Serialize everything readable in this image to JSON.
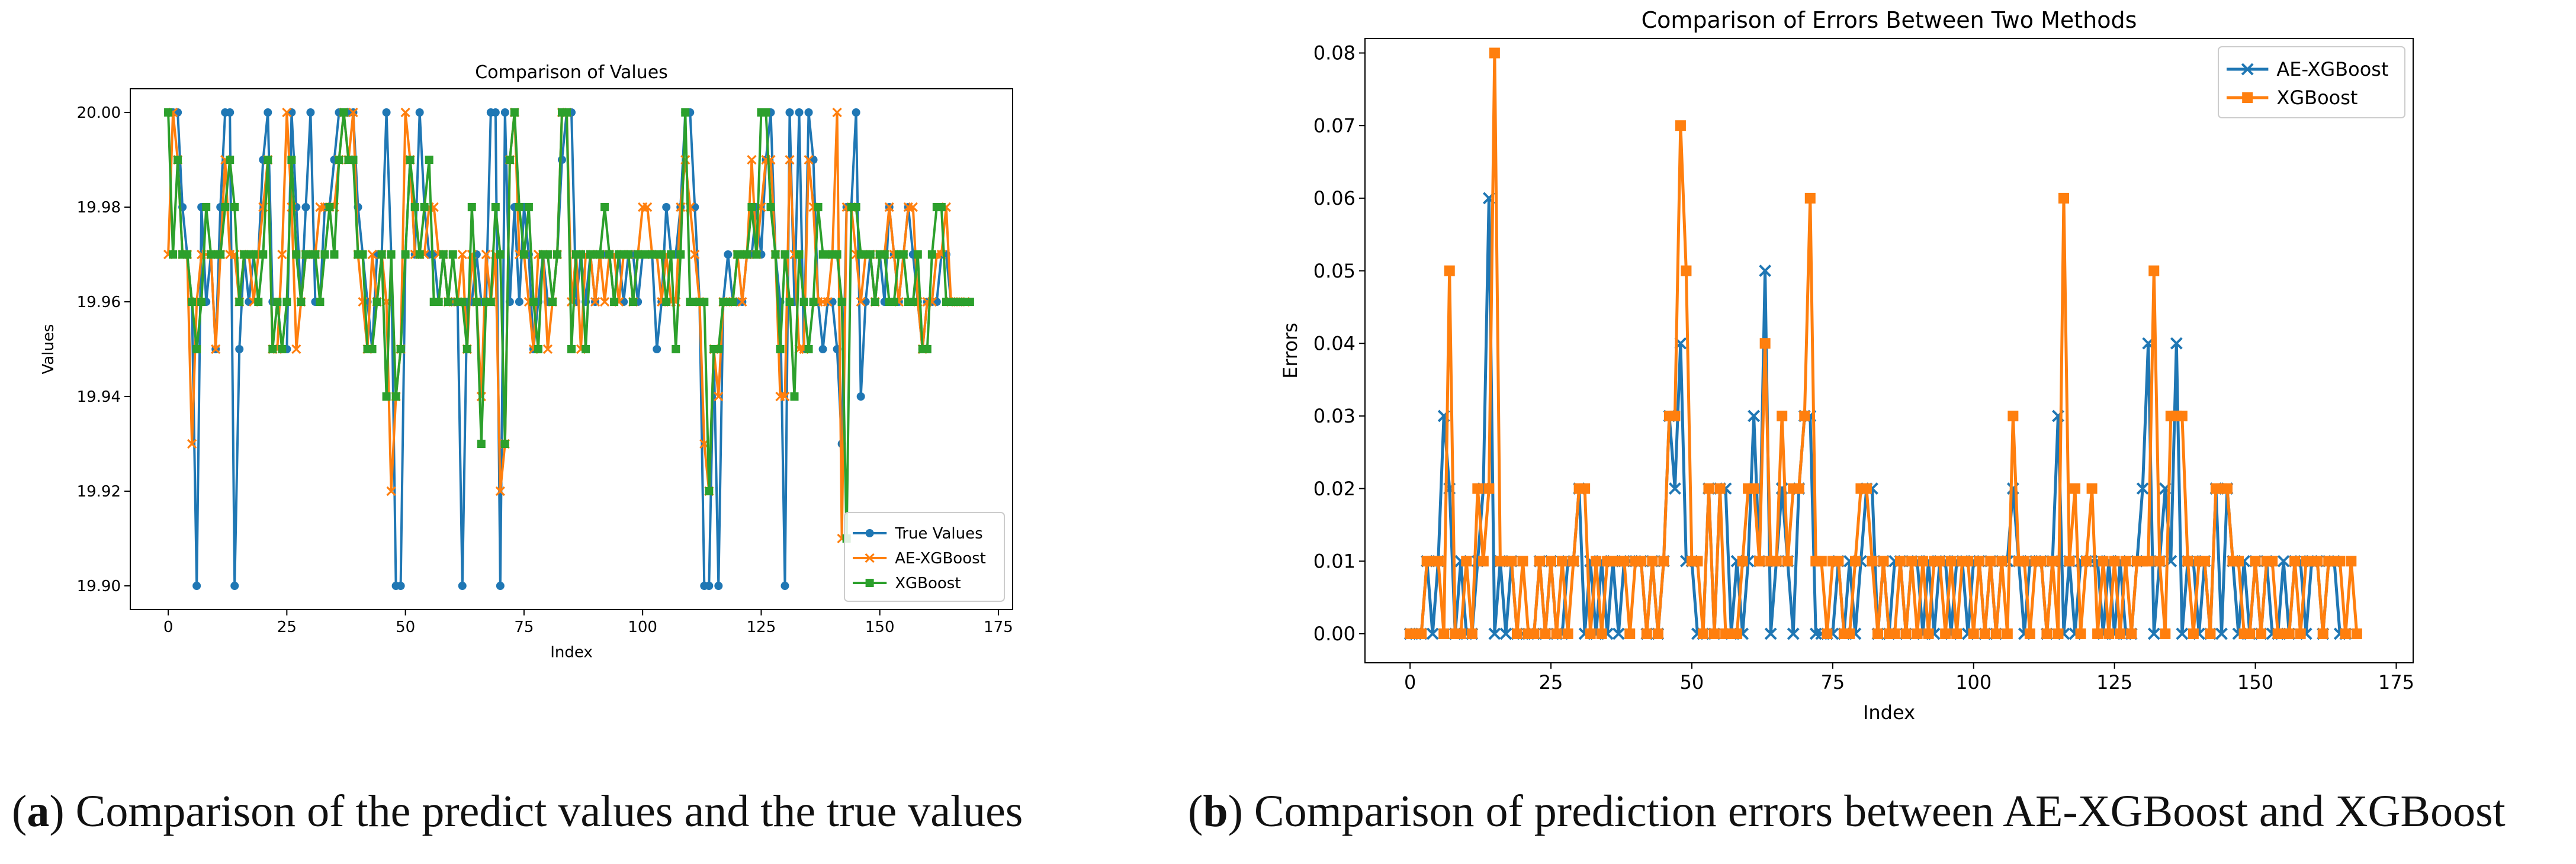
{
  "colors": {
    "true_values": "#1f77b4",
    "ae_xgboost": "#ff7f0e",
    "xgboost": "#2ca02c"
  },
  "captions": {
    "a": {
      "letter": "a",
      "text": " Comparison of the predict values and the true values"
    },
    "b": {
      "letter": "b",
      "text": " Comparison of prediction errors between AE-XGBoost and XGBoost"
    }
  },
  "chart_data": [
    {
      "id": "a",
      "type": "line",
      "title": "Comparison of Values",
      "xlabel": "Index",
      "ylabel": "Values",
      "xlim": [
        -8,
        178
      ],
      "ylim": [
        19.895,
        20.005
      ],
      "xticks": [
        0,
        25,
        50,
        75,
        100,
        125,
        150,
        175
      ],
      "yticks": [
        19.9,
        19.92,
        19.94,
        19.96,
        19.98,
        20.0
      ],
      "ytick_labels": [
        "19.90",
        "19.92",
        "19.94",
        "19.96",
        "19.98",
        "20.00"
      ],
      "legend_position": "lower right",
      "series": [
        {
          "name": "True Values",
          "marker": "circle",
          "color_key": "true_values",
          "values": [
            20.0,
            20.0,
            20.0,
            19.98,
            19.97,
            19.96,
            19.9,
            19.98,
            19.96,
            19.97,
            19.95,
            19.98,
            20.0,
            20.0,
            19.9,
            19.95,
            19.97,
            19.96,
            19.97,
            19.97,
            19.99,
            20.0,
            19.96,
            19.96,
            19.95,
            19.95,
            20.0,
            19.98,
            19.96,
            19.98,
            20.0,
            19.96,
            19.96,
            19.98,
            19.98,
            19.99,
            20.0,
            20.0,
            20.0,
            20.0,
            19.98,
            19.97,
            19.96,
            19.95,
            19.97,
            19.97,
            20.0,
            19.97,
            19.9,
            19.9,
            19.97,
            19.99,
            19.97,
            20.0,
            19.98,
            19.97,
            19.97,
            19.96,
            19.97,
            19.96,
            19.96,
            19.96,
            19.9,
            19.96,
            19.96,
            19.97,
            19.96,
            19.96,
            20.0,
            20.0,
            19.9,
            20.0,
            19.96,
            19.98,
            19.96,
            19.98,
            19.97,
            19.95,
            19.96,
            19.97,
            19.96,
            19.96,
            19.97,
            19.99,
            20.0,
            20.0,
            19.96,
            19.97,
            19.96,
            19.97,
            19.96,
            19.97,
            19.97,
            19.97,
            19.96,
            19.97,
            19.96,
            19.97,
            19.97,
            19.96,
            19.97,
            19.97,
            19.97,
            19.95,
            19.96,
            19.98,
            19.97,
            19.97,
            19.98,
            20.0,
            20.0,
            19.98,
            19.96,
            19.9,
            19.9,
            19.95,
            19.9,
            19.96,
            19.97,
            19.96,
            19.96,
            19.96,
            19.97,
            19.97,
            19.98,
            19.97,
            19.99,
            20.0,
            19.97,
            19.96,
            19.9,
            20.0,
            19.96,
            20.0,
            19.95,
            20.0,
            19.99,
            19.96,
            19.95,
            19.96,
            19.96,
            19.95,
            19.93,
            19.98,
            19.98,
            20.0,
            19.94,
            19.96,
            19.97,
            19.96,
            19.97,
            19.96,
            19.98,
            19.97,
            19.96,
            19.97,
            19.98,
            19.97,
            19.96,
            19.95,
            19.96,
            19.96,
            19.96,
            19.97,
            19.97,
            19.96,
            19.96,
            19.96,
            19.96
          ]
        },
        {
          "name": "AE-XGBoost",
          "marker": "x",
          "color_key": "ae_xgboost",
          "values": [
            19.97,
            20.0,
            19.99,
            19.97,
            19.97,
            19.93,
            19.96,
            19.97,
            19.97,
            19.97,
            19.95,
            19.97,
            19.99,
            19.97,
            19.97,
            19.96,
            19.97,
            19.97,
            19.96,
            19.97,
            19.98,
            19.99,
            19.95,
            19.95,
            19.97,
            20.0,
            19.98,
            19.95,
            19.96,
            19.97,
            19.97,
            19.97,
            19.98,
            19.98,
            19.98,
            19.98,
            19.99,
            20.0,
            19.99,
            20.0,
            19.97,
            19.96,
            19.95,
            19.97,
            19.96,
            19.97,
            19.96,
            19.92,
            19.94,
            19.95,
            20.0,
            19.99,
            19.97,
            19.97,
            19.97,
            19.98,
            19.98,
            19.97,
            19.97,
            19.96,
            19.96,
            19.96,
            19.97,
            19.95,
            19.97,
            19.96,
            19.94,
            19.97,
            19.96,
            19.97,
            19.92,
            19.93,
            19.99,
            20.0,
            19.97,
            19.97,
            19.96,
            19.95,
            19.97,
            19.97,
            19.95,
            19.96,
            19.97,
            20.0,
            20.0,
            19.96,
            19.97,
            19.95,
            19.97,
            19.97,
            19.96,
            19.97,
            19.96,
            19.97,
            19.97,
            19.96,
            19.97,
            19.97,
            19.96,
            19.97,
            19.98,
            19.98,
            19.97,
            19.97,
            19.96,
            19.97,
            19.96,
            19.96,
            19.98,
            19.99,
            19.98,
            19.97,
            19.96,
            19.93,
            19.92,
            19.95,
            19.94,
            19.96,
            19.96,
            19.96,
            19.97,
            19.96,
            19.97,
            19.99,
            19.97,
            19.98,
            19.99,
            19.99,
            19.97,
            19.94,
            19.94,
            19.99,
            19.97,
            19.95,
            19.95,
            19.99,
            19.98,
            19.96,
            19.96,
            19.96,
            19.97,
            20.0,
            19.91,
            19.98,
            19.98,
            19.97,
            19.96,
            19.97,
            19.97,
            19.96,
            19.97,
            19.97,
            19.98,
            19.97,
            19.96,
            19.97,
            19.98,
            19.98,
            19.96,
            19.95,
            19.96,
            19.96,
            19.97,
            19.97,
            19.98,
            19.96,
            19.96,
            19.96,
            19.96
          ]
        },
        {
          "name": "XGBoost",
          "marker": "square",
          "color_key": "xgboost",
          "values": [
            20.0,
            19.97,
            19.99,
            19.97,
            19.97,
            19.96,
            19.95,
            19.96,
            19.98,
            19.97,
            19.97,
            19.97,
            19.98,
            19.99,
            19.98,
            19.96,
            19.97,
            19.97,
            19.97,
            19.96,
            19.97,
            19.99,
            19.95,
            19.96,
            19.95,
            19.96,
            19.99,
            19.97,
            19.96,
            19.97,
            19.97,
            19.97,
            19.96,
            19.97,
            19.98,
            19.97,
            19.99,
            20.0,
            19.99,
            19.99,
            19.97,
            19.97,
            19.95,
            19.95,
            19.96,
            19.97,
            19.94,
            19.97,
            19.94,
            19.95,
            19.97,
            19.99,
            19.98,
            19.97,
            19.98,
            19.99,
            19.96,
            19.96,
            19.97,
            19.96,
            19.97,
            19.96,
            19.96,
            19.95,
            19.98,
            19.96,
            19.93,
            19.96,
            19.96,
            19.98,
            19.97,
            19.93,
            19.99,
            20.0,
            19.98,
            19.97,
            19.98,
            19.96,
            19.95,
            19.97,
            19.97,
            19.96,
            19.97,
            20.0,
            20.0,
            19.95,
            19.97,
            19.97,
            19.95,
            19.97,
            19.97,
            19.97,
            19.98,
            19.97,
            19.96,
            19.97,
            19.97,
            19.97,
            19.96,
            19.97,
            19.97,
            19.97,
            19.97,
            19.97,
            19.97,
            19.96,
            19.97,
            19.95,
            19.97,
            20.0,
            19.96,
            19.96,
            19.96,
            19.96,
            19.92,
            19.95,
            19.95,
            19.96,
            19.96,
            19.96,
            19.97,
            19.97,
            19.97,
            19.98,
            19.97,
            20.0,
            20.0,
            19.98,
            19.97,
            19.95,
            19.97,
            19.96,
            19.94,
            19.97,
            19.96,
            19.95,
            19.96,
            19.98,
            19.97,
            19.97,
            19.97,
            19.97,
            19.96,
            19.91,
            19.98,
            19.98,
            19.97,
            19.97,
            19.97,
            19.96,
            19.97,
            19.97,
            19.96,
            19.96,
            19.97,
            19.97,
            19.96,
            19.96,
            19.97,
            19.95,
            19.95,
            19.97,
            19.98,
            19.98,
            19.96,
            19.96,
            19.96,
            19.96,
            19.96,
            19.96
          ]
        }
      ]
    },
    {
      "id": "b",
      "type": "line",
      "title": "Comparison of Errors Between Two Methods",
      "xlabel": "Index",
      "ylabel": "Errors",
      "xlim": [
        -8,
        178
      ],
      "ylim": [
        -0.004,
        0.082
      ],
      "xticks": [
        0,
        25,
        50,
        75,
        100,
        125,
        150,
        175
      ],
      "yticks": [
        0.0,
        0.01,
        0.02,
        0.03,
        0.04,
        0.05,
        0.06,
        0.07,
        0.08
      ],
      "ytick_labels": [
        "0.00",
        "0.01",
        "0.02",
        "0.03",
        "0.04",
        "0.05",
        "0.06",
        "0.07",
        "0.08"
      ],
      "legend_position": "upper right",
      "series": [
        {
          "name": "AE-XGBoost",
          "marker": "x",
          "color_key": "true_values",
          "values": [
            0,
            0,
            0,
            0.01,
            0,
            0.01,
            0.03,
            0.02,
            0,
            0.01,
            0,
            0,
            0.01,
            0.02,
            0.06,
            0,
            0.01,
            0,
            0.01,
            0,
            0,
            0,
            0,
            0.01,
            0,
            0.01,
            0,
            0,
            0.01,
            0.01,
            0.02,
            0,
            0.01,
            0,
            0.01,
            0,
            0.01,
            0,
            0.01,
            0.01,
            0.01,
            0.01,
            0,
            0.01,
            0,
            0.01,
            0.03,
            0.02,
            0.04,
            0.01,
            0.01,
            0,
            0,
            0.02,
            0,
            0.02,
            0.02,
            0,
            0.01,
            0,
            0.01,
            0.03,
            0.01,
            0.05,
            0,
            0.01,
            0.02,
            0.01,
            0,
            0.02,
            0.03,
            0.03,
            0,
            0,
            0,
            0,
            0.01,
            0,
            0.01,
            0,
            0.01,
            0.02,
            0.02,
            0,
            0.01,
            0,
            0.01,
            0.01,
            0,
            0.01,
            0.01,
            0,
            0.01,
            0,
            0.01,
            0.01,
            0,
            0.01,
            0.01,
            0,
            0.01,
            0.01,
            0,
            0.01,
            0,
            0.01,
            0.01,
            0.02,
            0.01,
            0,
            0.01,
            0.01,
            0.01,
            0,
            0.01,
            0.03,
            0,
            0.01,
            0,
            0.01,
            0.01,
            0.01,
            0.01,
            0,
            0.01,
            0,
            0.01,
            0,
            0,
            0.01,
            0.02,
            0.04,
            0,
            0.01,
            0.02,
            0.01,
            0.04,
            0,
            0.01,
            0.01,
            0,
            0.01,
            0,
            0.02,
            0,
            0.02,
            0.01,
            0,
            0.01,
            0,
            0.01,
            0,
            0.01,
            0,
            0,
            0.01,
            0,
            0.01,
            0.01,
            0,
            0.01,
            0.01,
            0,
            0.01,
            0.01,
            0,
            0
          ]
        },
        {
          "name": "XGBoost",
          "marker": "square",
          "color_key": "ae_xgboost",
          "values": [
            0,
            0,
            0,
            0.01,
            0.01,
            0.01,
            0,
            0.05,
            0,
            0,
            0.01,
            0,
            0.02,
            0.01,
            0.02,
            0.08,
            0.01,
            0.01,
            0.01,
            0,
            0.01,
            0,
            0,
            0.01,
            0,
            0.01,
            0,
            0.01,
            0,
            0.01,
            0.02,
            0.02,
            0,
            0.01,
            0,
            0.01,
            0.01,
            0.01,
            0.01,
            0,
            0.01,
            0.01,
            0,
            0.01,
            0,
            0.01,
            0.03,
            0.03,
            0.07,
            0.05,
            0.01,
            0.01,
            0,
            0.02,
            0,
            0.02,
            0,
            0,
            0,
            0.01,
            0.02,
            0.02,
            0.01,
            0.04,
            0.01,
            0.01,
            0.03,
            0.01,
            0.02,
            0.02,
            0.03,
            0.06,
            0.01,
            0.01,
            0,
            0.01,
            0.01,
            0,
            0,
            0.01,
            0.02,
            0.02,
            0.01,
            0,
            0.01,
            0,
            0,
            0.01,
            0,
            0.01,
            0,
            0.01,
            0,
            0.01,
            0.01,
            0,
            0.01,
            0,
            0.01,
            0.01,
            0,
            0.01,
            0,
            0.01,
            0,
            0.01,
            0,
            0.03,
            0.01,
            0.01,
            0,
            0.01,
            0.01,
            0,
            0.01,
            0,
            0.06,
            0.01,
            0.02,
            0,
            0.01,
            0.02,
            0,
            0.01,
            0,
            0.01,
            0,
            0.01,
            0,
            0.01,
            0.01,
            0.01,
            0.05,
            0.01,
            0,
            0.03,
            0.03,
            0.03,
            0.01,
            0,
            0.01,
            0.01,
            0,
            0.02,
            0.02,
            0.02,
            0.01,
            0.01,
            0,
            0,
            0.01,
            0,
            0.01,
            0.01,
            0,
            0,
            0,
            0.01,
            0,
            0.01,
            0.01,
            0.01,
            0,
            0.01,
            0.01,
            0.01,
            0,
            0.01,
            0
          ]
        }
      ]
    }
  ]
}
